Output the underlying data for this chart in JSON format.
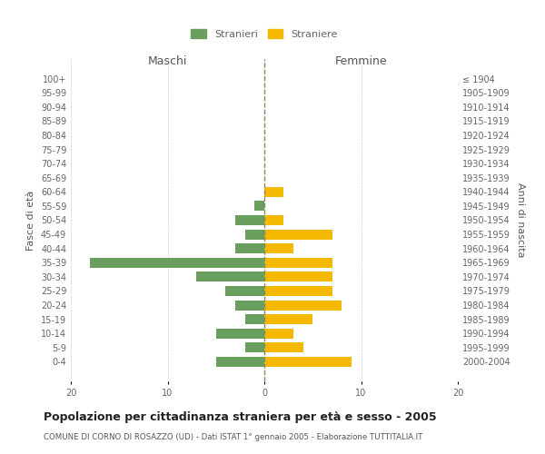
{
  "age_groups": [
    "100+",
    "95-99",
    "90-94",
    "85-89",
    "80-84",
    "75-79",
    "70-74",
    "65-69",
    "60-64",
    "55-59",
    "50-54",
    "45-49",
    "40-44",
    "35-39",
    "30-34",
    "25-29",
    "20-24",
    "15-19",
    "10-14",
    "5-9",
    "0-4"
  ],
  "birth_years": [
    "≤ 1904",
    "1905-1909",
    "1910-1914",
    "1915-1919",
    "1920-1924",
    "1925-1929",
    "1930-1934",
    "1935-1939",
    "1940-1944",
    "1945-1949",
    "1950-1954",
    "1955-1959",
    "1960-1964",
    "1965-1969",
    "1970-1974",
    "1975-1979",
    "1980-1984",
    "1985-1989",
    "1990-1994",
    "1995-1999",
    "2000-2004"
  ],
  "males": [
    0,
    0,
    0,
    0,
    0,
    0,
    0,
    0,
    0,
    1,
    3,
    2,
    3,
    18,
    7,
    4,
    3,
    2,
    5,
    2,
    5
  ],
  "females": [
    0,
    0,
    0,
    0,
    0,
    0,
    0,
    0,
    2,
    0,
    2,
    7,
    3,
    7,
    7,
    7,
    8,
    5,
    3,
    4,
    9
  ],
  "male_color": "#6a9e5e",
  "female_color": "#f5b800",
  "title": "Popolazione per cittadinanza straniera per età e sesso - 2005",
  "subtitle": "COMUNE DI CORNO DI ROSAZZO (UD) - Dati ISTAT 1° gennaio 2005 - Elaborazione TUTTITALIA.IT",
  "xlabel_left": "Maschi",
  "xlabel_right": "Femmine",
  "ylabel_left": "Fasce di età",
  "ylabel_right": "Anni di nascita",
  "legend_male": "Stranieri",
  "legend_female": "Straniere",
  "xlim": 20,
  "background_color": "#ffffff",
  "grid_color": "#cccccc",
  "axis_label_color": "#555555",
  "tick_label_color": "#666666",
  "center_line_color": "#888866"
}
